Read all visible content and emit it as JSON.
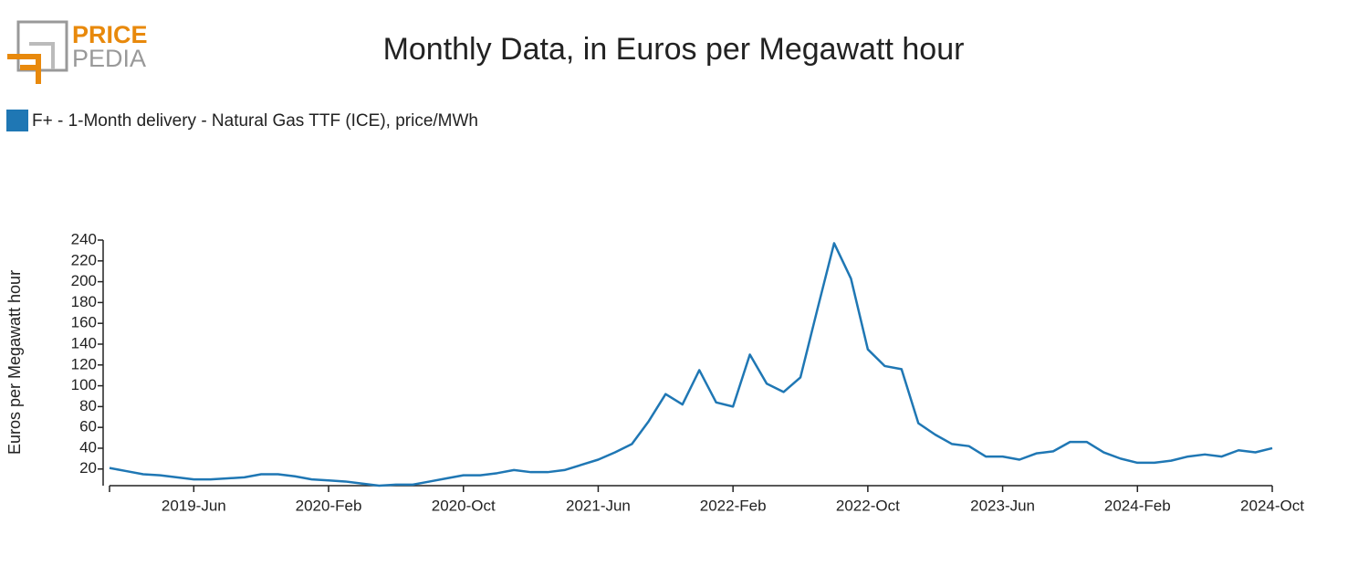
{
  "logo": {
    "top": "PRICE",
    "bottom": "PEDIA"
  },
  "chart_data": {
    "type": "line",
    "title": "Monthly Data, in Euros per Megawatt hour",
    "y_label": "Euros per Megawatt hour",
    "categories": [
      null,
      null,
      null,
      null,
      null,
      "2019-Jun",
      null,
      null,
      null,
      null,
      null,
      null,
      null,
      "2020-Feb",
      null,
      null,
      null,
      null,
      null,
      null,
      null,
      "2020-Oct",
      null,
      null,
      null,
      null,
      null,
      null,
      null,
      "2021-Jun",
      null,
      null,
      null,
      null,
      null,
      null,
      null,
      "2022-Feb",
      null,
      null,
      null,
      null,
      null,
      null,
      null,
      "2022-Oct",
      null,
      null,
      null,
      null,
      null,
      null,
      null,
      "2023-Jun",
      null,
      null,
      null,
      null,
      null,
      null,
      null,
      "2024-Feb",
      null,
      null,
      null,
      null,
      null,
      null,
      null,
      "2024-Oct"
    ],
    "series": [
      {
        "name": "F+ - 1-Month delivery - Natural Gas TTF (ICE), price/MWh",
        "color": "#1f77b4",
        "values": [
          21,
          18,
          15,
          14,
          12,
          10,
          10,
          11,
          12,
          15,
          15,
          13,
          10,
          9,
          8,
          6,
          4,
          5,
          5,
          8,
          11,
          14,
          14,
          16,
          19,
          17,
          17,
          19,
          24,
          29,
          36,
          44,
          66,
          92,
          82,
          115,
          84,
          80,
          130,
          102,
          94,
          108,
          173,
          237,
          203,
          135,
          119,
          116,
          64,
          53,
          44,
          42,
          32,
          32,
          29,
          35,
          37,
          46,
          46,
          36,
          30,
          26,
          26,
          28,
          32,
          34,
          32,
          38,
          36,
          40
        ]
      }
    ],
    "ylim": [
      4,
      240
    ],
    "yticks": [
      20,
      40,
      60,
      80,
      100,
      120,
      140,
      160,
      180,
      200,
      220,
      240
    ]
  }
}
